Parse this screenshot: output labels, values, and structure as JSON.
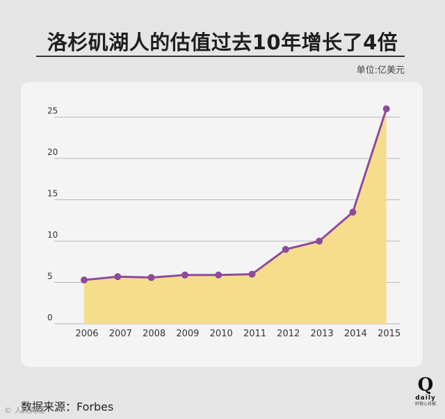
{
  "title": "洛杉矶湖人的估值过去10年增长了4倍",
  "unit": "单位:亿美元",
  "source": "数据来源：Forbes",
  "logo": {
    "mark": "Q",
    "word": "daily",
    "subtitle": "好奇心日报"
  },
  "watermark": "© 人民网络",
  "colors": {
    "line": "#8e4a9c",
    "area": "#f5dd8c",
    "grid": "#b5b5b5"
  },
  "chart_data": {
    "type": "area",
    "x": [
      "2006",
      "2007",
      "2008",
      "2009",
      "2010",
      "2011",
      "2012",
      "2013",
      "2014",
      "2015"
    ],
    "series": [
      {
        "values": [
          5.3,
          5.7,
          5.6,
          5.9,
          5.9,
          6.0,
          9.0,
          10.0,
          13.5,
          26.0
        ]
      }
    ],
    "yticks": [
      "0",
      "5",
      "10",
      "15",
      "20",
      "25"
    ],
    "ylim": [
      0,
      27
    ],
    "grid": true,
    "markers": true
  }
}
